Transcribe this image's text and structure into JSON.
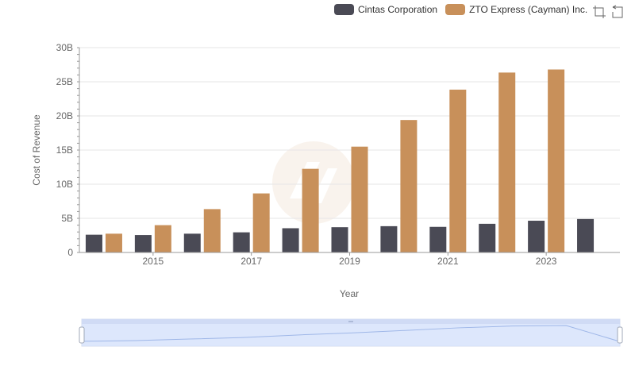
{
  "legend": {
    "items": [
      {
        "label": "Cintas Corporation",
        "color": "#4a4a55"
      },
      {
        "label": "ZTO Express (Cayman) Inc.",
        "color": "#c8905a"
      }
    ]
  },
  "toolbox": {
    "icons": [
      "zoom-icon",
      "restore-icon"
    ]
  },
  "chart_data": {
    "type": "bar",
    "xlabel": "Year",
    "ylabel": "Cost of Revenue",
    "x_tick_labels": [
      "2015",
      "2017",
      "2019",
      "2021",
      "2023"
    ],
    "y_tick_labels": [
      "0",
      "5B",
      "10B",
      "15B",
      "20B",
      "25B",
      "30B"
    ],
    "ylim": [
      0,
      30000000000
    ],
    "categories": [
      "2014",
      "2015",
      "2016",
      "2017",
      "2018",
      "2019",
      "2020",
      "2021",
      "2022",
      "2023",
      "2024"
    ],
    "series": [
      {
        "name": "Cintas Corporation",
        "color": "#4a4a55",
        "values": [
          2600000000,
          2550000000,
          2750000000,
          2950000000,
          3550000000,
          3700000000,
          3850000000,
          3750000000,
          4200000000,
          4650000000,
          4900000000
        ]
      },
      {
        "name": "ZTO Express (Cayman) Inc.",
        "color": "#c8905a",
        "values": [
          2750000000,
          4000000000,
          6350000000,
          8650000000,
          12250000000,
          15500000000,
          19400000000,
          23850000000,
          26350000000,
          26800000000,
          null
        ]
      }
    ],
    "grid": true,
    "legend_position": "top-right",
    "datazoom": {
      "start": 0,
      "end": 100
    }
  }
}
